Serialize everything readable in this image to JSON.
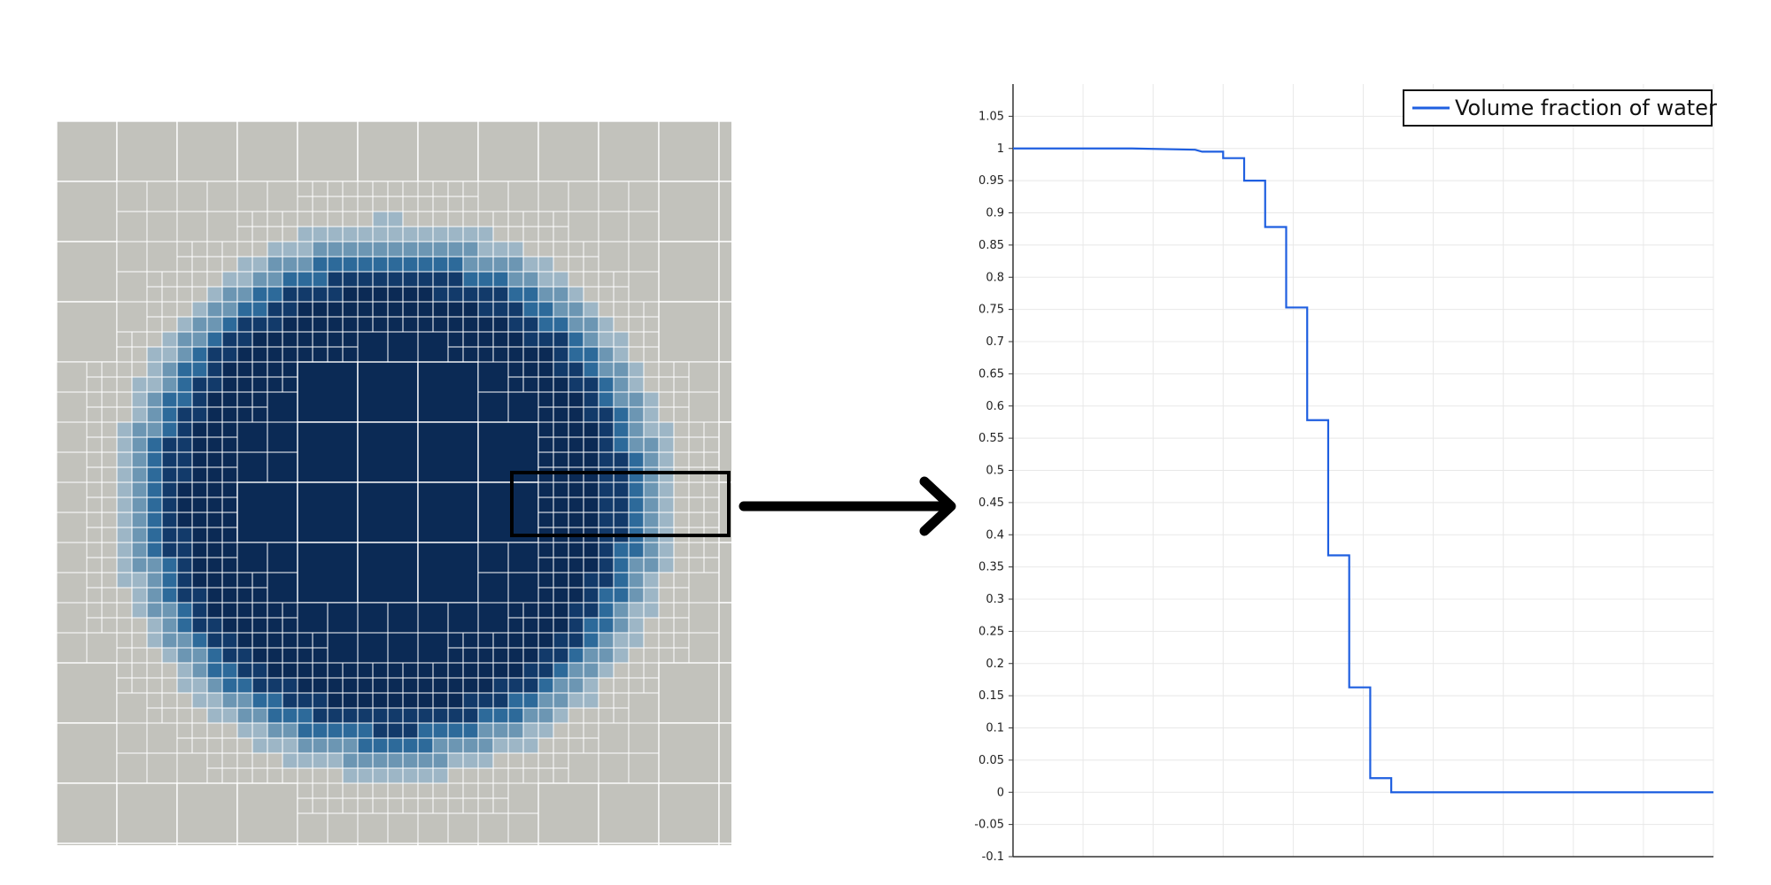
{
  "colors": {
    "cell_background": "#c2c2bc",
    "cell_border": "#ffffff",
    "water_dark": "#0b2a55",
    "water_mid": "#2d6a9a",
    "water_light": "#9db6c6",
    "line": "#1f5fe0",
    "axis": "#333333",
    "grid": "#e8e8e8",
    "highlight_box": "#000000",
    "arrow": "#000000"
  },
  "mesh": {
    "description_icon": "adaptive-mesh-droplet",
    "highlight_box": {
      "label": ""
    },
    "arrow_icon": "right-arrow-icon"
  },
  "chart_data": {
    "type": "line",
    "title": "",
    "xlabel": "",
    "ylabel": "",
    "ylim": [
      -0.1,
      1.1
    ],
    "y_ticks": [
      "1.05",
      "1",
      "0.95",
      "0.9",
      "0.85",
      "0.8",
      "0.75",
      "0.7",
      "0.65",
      "0.6",
      "0.55",
      "0.5",
      "0.45",
      "0.4",
      "0.35",
      "0.3",
      "0.25",
      "0.2",
      "0.15",
      "0.1",
      "0.05",
      "0",
      "-0.05",
      "-0.1"
    ],
    "grid": true,
    "legend_position": "top-right",
    "series": [
      {
        "name": "Volume fraction of water",
        "color": "#1f5fe0",
        "points": [
          [
            0.0,
            1.0
          ],
          [
            0.17,
            1.0
          ],
          [
            0.26,
            0.998
          ],
          [
            0.27,
            0.995
          ],
          [
            0.3,
            0.995
          ],
          [
            0.3,
            0.985
          ],
          [
            0.33,
            0.985
          ],
          [
            0.33,
            0.95
          ],
          [
            0.36,
            0.95
          ],
          [
            0.36,
            0.878
          ],
          [
            0.39,
            0.878
          ],
          [
            0.39,
            0.753
          ],
          [
            0.42,
            0.753
          ],
          [
            0.42,
            0.578
          ],
          [
            0.45,
            0.578
          ],
          [
            0.45,
            0.368
          ],
          [
            0.48,
            0.368
          ],
          [
            0.48,
            0.163
          ],
          [
            0.51,
            0.163
          ],
          [
            0.51,
            0.022
          ],
          [
            0.54,
            0.022
          ],
          [
            0.54,
            0.0
          ],
          [
            1.0,
            0.0
          ]
        ]
      }
    ]
  }
}
